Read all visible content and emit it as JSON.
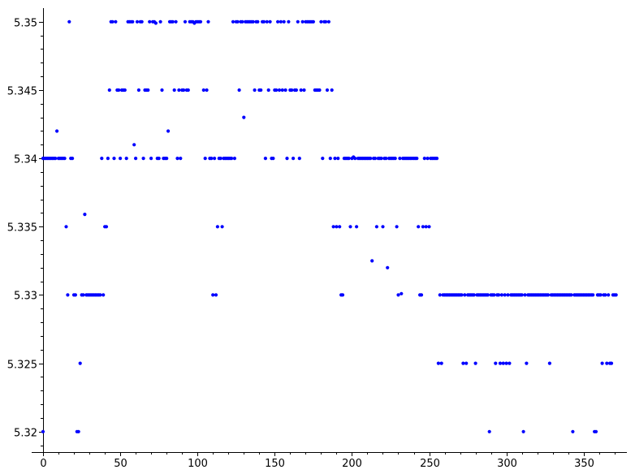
{
  "chart_data": {
    "type": "scatter",
    "title": "",
    "xlabel": "",
    "ylabel": "",
    "xlim": [
      0,
      378
    ],
    "ylim": [
      5.3185,
      5.351
    ],
    "x_ticks": [
      0,
      50,
      100,
      150,
      200,
      250,
      300,
      350
    ],
    "x_tick_labels": [
      "0",
      "50",
      "100",
      "150",
      "200",
      "250",
      "300",
      "350"
    ],
    "y_ticks": [
      5.32,
      5.325,
      5.33,
      5.335,
      5.34,
      5.345,
      5.35
    ],
    "y_tick_labels": [
      "5.32",
      "5.325",
      "5.33",
      "5.335",
      "5.34",
      "5.345",
      "5.35"
    ],
    "grid": false,
    "color": "#0000ff",
    "points": [
      [
        0,
        5.32
      ],
      [
        0,
        5.34
      ],
      [
        1,
        5.34
      ],
      [
        2,
        5.34
      ],
      [
        3,
        5.34
      ],
      [
        4,
        5.34
      ],
      [
        5,
        5.34
      ],
      [
        6,
        5.34
      ],
      [
        7,
        5.34
      ],
      [
        8,
        5.34
      ],
      [
        9,
        5.342
      ],
      [
        10,
        5.34
      ],
      [
        11,
        5.34
      ],
      [
        12,
        5.34
      ],
      [
        13,
        5.34
      ],
      [
        14,
        5.34
      ],
      [
        15,
        5.335
      ],
      [
        16,
        5.33
      ],
      [
        17,
        5.35
      ],
      [
        18,
        5.34
      ],
      [
        19,
        5.34
      ],
      [
        20,
        5.33
      ],
      [
        21,
        5.33
      ],
      [
        22,
        5.32
      ],
      [
        23,
        5.32
      ],
      [
        24,
        5.325
      ],
      [
        25,
        5.33
      ],
      [
        26,
        5.33
      ],
      [
        27,
        5.3359
      ],
      [
        28,
        5.33
      ],
      [
        29,
        5.33
      ],
      [
        30,
        5.33
      ],
      [
        31,
        5.33
      ],
      [
        32,
        5.33
      ],
      [
        33,
        5.33
      ],
      [
        34,
        5.33
      ],
      [
        35,
        5.33
      ],
      [
        36,
        5.33
      ],
      [
        37,
        5.33
      ],
      [
        38,
        5.34
      ],
      [
        39,
        5.33
      ],
      [
        40,
        5.335
      ],
      [
        41,
        5.335
      ],
      [
        42,
        5.34
      ],
      [
        43,
        5.345
      ],
      [
        44,
        5.35
      ],
      [
        45,
        5.35
      ],
      [
        46,
        5.34
      ],
      [
        47,
        5.35
      ],
      [
        48,
        5.345
      ],
      [
        49,
        5.345
      ],
      [
        50,
        5.34
      ],
      [
        51,
        5.345
      ],
      [
        52,
        5.345
      ],
      [
        53,
        5.345
      ],
      [
        54,
        5.34
      ],
      [
        55,
        5.35
      ],
      [
        56,
        5.35
      ],
      [
        57,
        5.35
      ],
      [
        58,
        5.35
      ],
      [
        59,
        5.341
      ],
      [
        60,
        5.34
      ],
      [
        61,
        5.35
      ],
      [
        62,
        5.345
      ],
      [
        63,
        5.35
      ],
      [
        64,
        5.35
      ],
      [
        65,
        5.34
      ],
      [
        66,
        5.345
      ],
      [
        67,
        5.345
      ],
      [
        68,
        5.345
      ],
      [
        69,
        5.35
      ],
      [
        70,
        5.34
      ],
      [
        71,
        5.35
      ],
      [
        72,
        5.35
      ],
      [
        73,
        5.3499
      ],
      [
        74,
        5.34
      ],
      [
        75,
        5.34
      ],
      [
        76,
        5.35
      ],
      [
        77,
        5.345
      ],
      [
        78,
        5.34
      ],
      [
        79,
        5.34
      ],
      [
        80,
        5.34
      ],
      [
        81,
        5.342
      ],
      [
        82,
        5.35
      ],
      [
        83,
        5.35
      ],
      [
        84,
        5.35
      ],
      [
        85,
        5.345
      ],
      [
        86,
        5.35
      ],
      [
        87,
        5.34
      ],
      [
        88,
        5.345
      ],
      [
        89,
        5.34
      ],
      [
        90,
        5.345
      ],
      [
        91,
        5.345
      ],
      [
        92,
        5.35
      ],
      [
        93,
        5.345
      ],
      [
        94,
        5.345
      ],
      [
        95,
        5.35
      ],
      [
        96,
        5.35
      ],
      [
        97,
        5.35
      ],
      [
        98,
        5.3499
      ],
      [
        99,
        5.35
      ],
      [
        100,
        5.35
      ],
      [
        101,
        5.35
      ],
      [
        102,
        5.35
      ],
      [
        104,
        5.345
      ],
      [
        105,
        5.34
      ],
      [
        106,
        5.345
      ],
      [
        107,
        5.35
      ],
      [
        108,
        5.34
      ],
      [
        109,
        5.34
      ],
      [
        110,
        5.33
      ],
      [
        111,
        5.34
      ],
      [
        112,
        5.33
      ],
      [
        113,
        5.335
      ],
      [
        114,
        5.34
      ],
      [
        115,
        5.34
      ],
      [
        116,
        5.335
      ],
      [
        117,
        5.34
      ],
      [
        118,
        5.34
      ],
      [
        119,
        5.34
      ],
      [
        120,
        5.34
      ],
      [
        121,
        5.34
      ],
      [
        122,
        5.34
      ],
      [
        123,
        5.35
      ],
      [
        124,
        5.34
      ],
      [
        125,
        5.35
      ],
      [
        126,
        5.35
      ],
      [
        127,
        5.345
      ],
      [
        128,
        5.35
      ],
      [
        129,
        5.35
      ],
      [
        130,
        5.343
      ],
      [
        131,
        5.35
      ],
      [
        132,
        5.35
      ],
      [
        133,
        5.35
      ],
      [
        134,
        5.35
      ],
      [
        135,
        5.35
      ],
      [
        136,
        5.35
      ],
      [
        137,
        5.345
      ],
      [
        138,
        5.35
      ],
      [
        139,
        5.35
      ],
      [
        140,
        5.345
      ],
      [
        141,
        5.345
      ],
      [
        142,
        5.35
      ],
      [
        143,
        5.35
      ],
      [
        144,
        5.34
      ],
      [
        145,
        5.35
      ],
      [
        146,
        5.345
      ],
      [
        147,
        5.35
      ],
      [
        148,
        5.34
      ],
      [
        149,
        5.34
      ],
      [
        150,
        5.345
      ],
      [
        151,
        5.345
      ],
      [
        152,
        5.35
      ],
      [
        153,
        5.345
      ],
      [
        154,
        5.35
      ],
      [
        155,
        5.345
      ],
      [
        156,
        5.35
      ],
      [
        157,
        5.345
      ],
      [
        158,
        5.34
      ],
      [
        159,
        5.35
      ],
      [
        160,
        5.345
      ],
      [
        161,
        5.345
      ],
      [
        162,
        5.34
      ],
      [
        163,
        5.345
      ],
      [
        164,
        5.345
      ],
      [
        165,
        5.35
      ],
      [
        166,
        5.34
      ],
      [
        167,
        5.345
      ],
      [
        168,
        5.35
      ],
      [
        169,
        5.345
      ],
      [
        170,
        5.35
      ],
      [
        171,
        5.35
      ],
      [
        172,
        5.35
      ],
      [
        173,
        5.35
      ],
      [
        174,
        5.35
      ],
      [
        175,
        5.35
      ],
      [
        176,
        5.345
      ],
      [
        177,
        5.345
      ],
      [
        178,
        5.345
      ],
      [
        179,
        5.345
      ],
      [
        180,
        5.35
      ],
      [
        181,
        5.34
      ],
      [
        182,
        5.35
      ],
      [
        183,
        5.35
      ],
      [
        184,
        5.345
      ],
      [
        185,
        5.35
      ],
      [
        186,
        5.34
      ],
      [
        187,
        5.345
      ],
      [
        188,
        5.335
      ],
      [
        189,
        5.34
      ],
      [
        190,
        5.335
      ],
      [
        191,
        5.34
      ],
      [
        192,
        5.335
      ],
      [
        193,
        5.33
      ],
      [
        194,
        5.33
      ],
      [
        195,
        5.34
      ],
      [
        196,
        5.34
      ],
      [
        197,
        5.34
      ],
      [
        198,
        5.34
      ],
      [
        199,
        5.335
      ],
      [
        200,
        5.34
      ],
      [
        201,
        5.3401
      ],
      [
        202,
        5.34
      ],
      [
        203,
        5.335
      ],
      [
        204,
        5.34
      ],
      [
        205,
        5.34
      ],
      [
        206,
        5.34
      ],
      [
        207,
        5.34
      ],
      [
        208,
        5.34
      ],
      [
        209,
        5.34
      ],
      [
        210,
        5.34
      ],
      [
        211,
        5.34
      ],
      [
        212,
        5.34
      ],
      [
        213,
        5.3325
      ],
      [
        214,
        5.34
      ],
      [
        215,
        5.34
      ],
      [
        216,
        5.335
      ],
      [
        217,
        5.34
      ],
      [
        218,
        5.34
      ],
      [
        219,
        5.34
      ],
      [
        220,
        5.335
      ],
      [
        221,
        5.34
      ],
      [
        222,
        5.34
      ],
      [
        223,
        5.332
      ],
      [
        224,
        5.34
      ],
      [
        225,
        5.34
      ],
      [
        226,
        5.34
      ],
      [
        227,
        5.34
      ],
      [
        228,
        5.34
      ],
      [
        229,
        5.335
      ],
      [
        230,
        5.33
      ],
      [
        231,
        5.34
      ],
      [
        232,
        5.3301
      ],
      [
        233,
        5.34
      ],
      [
        234,
        5.34
      ],
      [
        235,
        5.34
      ],
      [
        236,
        5.34
      ],
      [
        237,
        5.34
      ],
      [
        238,
        5.34
      ],
      [
        239,
        5.34
      ],
      [
        240,
        5.34
      ],
      [
        241,
        5.34
      ],
      [
        242,
        5.34
      ],
      [
        243,
        5.335
      ],
      [
        244,
        5.33
      ],
      [
        245,
        5.33
      ],
      [
        246,
        5.335
      ],
      [
        247,
        5.34
      ],
      [
        248,
        5.335
      ],
      [
        249,
        5.34
      ],
      [
        250,
        5.335
      ],
      [
        251,
        5.34
      ],
      [
        252,
        5.34
      ],
      [
        253,
        5.34
      ],
      [
        254,
        5.34
      ],
      [
        255,
        5.34
      ],
      [
        256,
        5.325
      ],
      [
        257,
        5.33
      ],
      [
        258,
        5.325
      ],
      [
        259,
        5.33
      ],
      [
        260,
        5.33
      ],
      [
        261,
        5.33
      ],
      [
        262,
        5.33
      ],
      [
        263,
        5.33
      ],
      [
        264,
        5.33
      ],
      [
        265,
        5.33
      ],
      [
        266,
        5.33
      ],
      [
        267,
        5.33
      ],
      [
        268,
        5.33
      ],
      [
        269,
        5.33
      ],
      [
        270,
        5.33
      ],
      [
        271,
        5.33
      ],
      [
        272,
        5.325
      ],
      [
        273,
        5.33
      ],
      [
        274,
        5.325
      ],
      [
        275,
        5.33
      ],
      [
        276,
        5.33
      ],
      [
        277,
        5.33
      ],
      [
        278,
        5.33
      ],
      [
        279,
        5.33
      ],
      [
        280,
        5.325
      ],
      [
        281,
        5.33
      ],
      [
        282,
        5.33
      ],
      [
        283,
        5.33
      ],
      [
        284,
        5.33
      ],
      [
        285,
        5.33
      ],
      [
        286,
        5.33
      ],
      [
        287,
        5.33
      ],
      [
        288,
        5.33
      ],
      [
        289,
        5.32
      ],
      [
        290,
        5.33
      ],
      [
        291,
        5.33
      ],
      [
        292,
        5.33
      ],
      [
        293,
        5.325
      ],
      [
        294,
        5.33
      ],
      [
        295,
        5.33
      ],
      [
        296,
        5.325
      ],
      [
        297,
        5.33
      ],
      [
        298,
        5.325
      ],
      [
        299,
        5.33
      ],
      [
        300,
        5.325
      ],
      [
        301,
        5.33
      ],
      [
        302,
        5.325
      ],
      [
        303,
        5.33
      ],
      [
        304,
        5.33
      ],
      [
        305,
        5.33
      ],
      [
        306,
        5.33
      ],
      [
        307,
        5.33
      ],
      [
        308,
        5.33
      ],
      [
        309,
        5.33
      ],
      [
        310,
        5.33
      ],
      [
        311,
        5.32
      ],
      [
        312,
        5.33
      ],
      [
        313,
        5.325
      ],
      [
        314,
        5.33
      ],
      [
        315,
        5.33
      ],
      [
        316,
        5.33
      ],
      [
        317,
        5.33
      ],
      [
        318,
        5.33
      ],
      [
        319,
        5.33
      ],
      [
        320,
        5.33
      ],
      [
        321,
        5.33
      ],
      [
        322,
        5.33
      ],
      [
        323,
        5.33
      ],
      [
        324,
        5.33
      ],
      [
        325,
        5.33
      ],
      [
        326,
        5.33
      ],
      [
        327,
        5.33
      ],
      [
        328,
        5.325
      ],
      [
        329,
        5.33
      ],
      [
        330,
        5.33
      ],
      [
        331,
        5.33
      ],
      [
        332,
        5.33
      ],
      [
        333,
        5.33
      ],
      [
        334,
        5.33
      ],
      [
        335,
        5.33
      ],
      [
        336,
        5.33
      ],
      [
        337,
        5.33
      ],
      [
        338,
        5.33
      ],
      [
        339,
        5.33
      ],
      [
        340,
        5.33
      ],
      [
        341,
        5.33
      ],
      [
        342,
        5.33
      ],
      [
        343,
        5.32
      ],
      [
        344,
        5.33
      ],
      [
        345,
        5.33
      ],
      [
        346,
        5.33
      ],
      [
        347,
        5.33
      ],
      [
        348,
        5.33
      ],
      [
        349,
        5.33
      ],
      [
        350,
        5.33
      ],
      [
        351,
        5.33
      ],
      [
        352,
        5.33
      ],
      [
        353,
        5.33
      ],
      [
        354,
        5.33
      ],
      [
        355,
        5.33
      ],
      [
        356,
        5.33
      ],
      [
        357,
        5.32
      ],
      [
        358,
        5.32
      ],
      [
        359,
        5.33
      ],
      [
        360,
        5.33
      ],
      [
        361,
        5.33
      ],
      [
        362,
        5.325
      ],
      [
        363,
        5.33
      ],
      [
        364,
        5.33
      ],
      [
        365,
        5.325
      ],
      [
        366,
        5.33
      ],
      [
        367,
        5.325
      ],
      [
        368,
        5.325
      ],
      [
        369,
        5.33
      ],
      [
        370,
        5.33
      ],
      [
        371,
        5.33
      ]
    ]
  }
}
